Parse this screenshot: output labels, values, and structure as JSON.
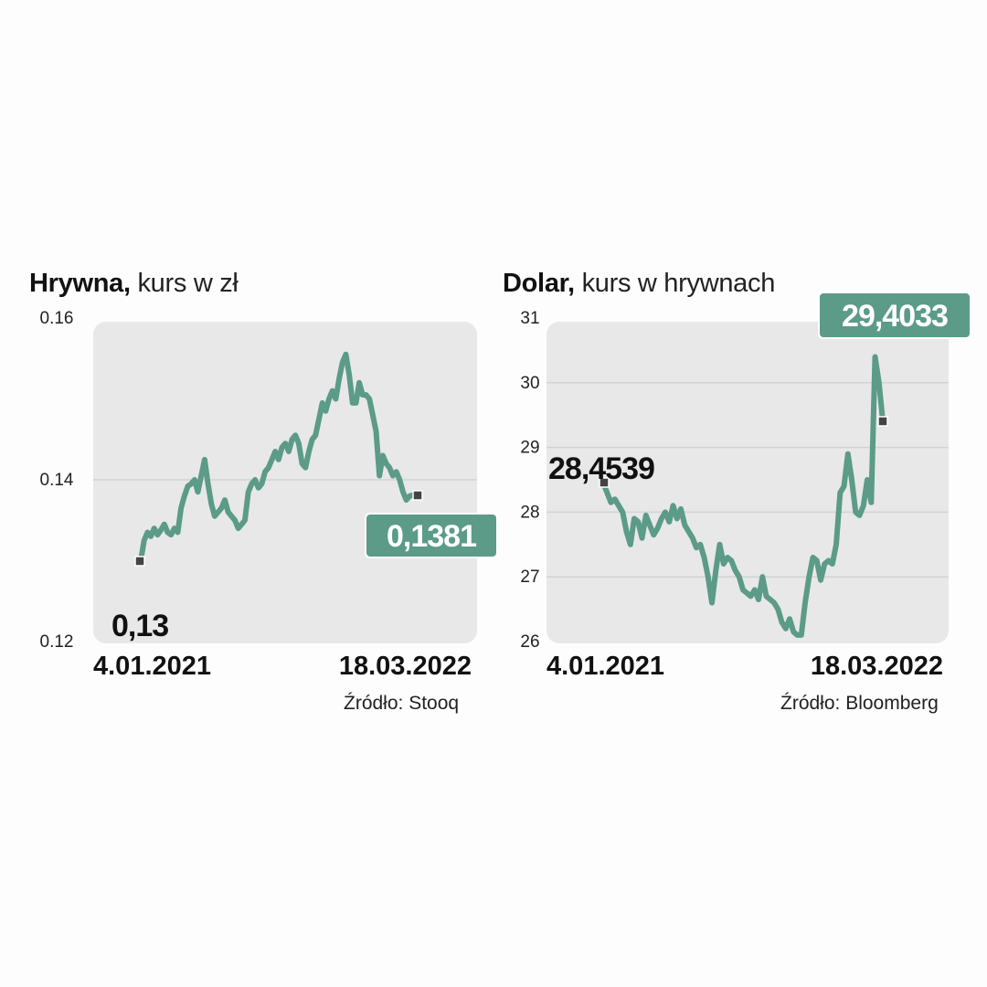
{
  "colors": {
    "line": "#5b9b88",
    "label_bg": "#5b9b88",
    "plot_bg": "#e8e8e8",
    "marker": "#444444"
  },
  "chart_data": [
    {
      "type": "line",
      "title": "Hrywna,",
      "subtitle": "kurs w zł",
      "ylim": [
        0.12,
        0.16
      ],
      "yticks": [
        "0.16",
        "0.14",
        "0.12"
      ],
      "ytick_values": [
        0.16,
        0.14,
        0.12
      ],
      "grid": true,
      "x_labels": [
        "4.01.2021",
        "18.03.2022"
      ],
      "start_label": "0,13",
      "end_label": "0,1381",
      "source": "Źródło: Stooq",
      "series": [
        {
          "values": [
            0.13,
            0.1325,
            0.1335,
            0.133,
            0.134,
            0.1332,
            0.1338,
            0.1345,
            0.1335,
            0.1332,
            0.134,
            0.1335,
            0.1365,
            0.138,
            0.1392,
            0.1395,
            0.14,
            0.1385,
            0.1405,
            0.1425,
            0.1395,
            0.137,
            0.1355,
            0.136,
            0.1365,
            0.1375,
            0.136,
            0.1355,
            0.135,
            0.134,
            0.1345,
            0.135,
            0.1385,
            0.1395,
            0.14,
            0.139,
            0.1395,
            0.141,
            0.1415,
            0.1425,
            0.1435,
            0.1425,
            0.144,
            0.1445,
            0.1435,
            0.145,
            0.1455,
            0.1445,
            0.142,
            0.1415,
            0.1435,
            0.145,
            0.1455,
            0.1475,
            0.1495,
            0.1485,
            0.15,
            0.151,
            0.15,
            0.1525,
            0.1545,
            0.1555,
            0.153,
            0.1495,
            0.1495,
            0.152,
            0.1505,
            0.1505,
            0.15,
            0.148,
            0.146,
            0.1405,
            0.143,
            0.142,
            0.1415,
            0.1405,
            0.141,
            0.14,
            0.1385,
            0.1375,
            0.138,
            0.1381
          ]
        }
      ]
    },
    {
      "type": "line",
      "title": "Dolar,",
      "subtitle": "kurs w hrywnach",
      "ylim": [
        26,
        31
      ],
      "yticks": [
        "31",
        "30",
        "29",
        "28",
        "27",
        "26"
      ],
      "ytick_values": [
        31,
        30,
        29,
        28,
        27,
        26
      ],
      "grid": true,
      "x_labels": [
        "4.01.2021",
        "18.03.2022"
      ],
      "start_label": "28,4539",
      "end_label": "29,4033",
      "source": "Źródło: Bloomberg",
      "series": [
        {
          "values": [
            28.4539,
            28.3,
            28.15,
            28.2,
            28.1,
            28.0,
            27.7,
            27.5,
            27.9,
            27.85,
            27.6,
            27.95,
            27.8,
            27.65,
            27.75,
            27.9,
            28.0,
            27.85,
            28.1,
            27.9,
            28.05,
            27.8,
            27.7,
            27.6,
            27.45,
            27.5,
            27.3,
            27.0,
            26.6,
            27.1,
            27.5,
            27.2,
            27.3,
            27.25,
            27.1,
            27.0,
            26.8,
            26.75,
            26.7,
            26.8,
            26.65,
            27.0,
            26.7,
            26.65,
            26.6,
            26.5,
            26.3,
            26.2,
            26.35,
            26.15,
            26.1,
            26.1,
            26.6,
            27.0,
            27.3,
            27.25,
            26.95,
            27.2,
            27.25,
            27.2,
            27.5,
            28.3,
            28.4,
            28.9,
            28.5,
            28.0,
            27.95,
            28.1,
            28.5,
            28.15,
            30.4,
            30.0,
            29.4033
          ]
        }
      ]
    }
  ]
}
